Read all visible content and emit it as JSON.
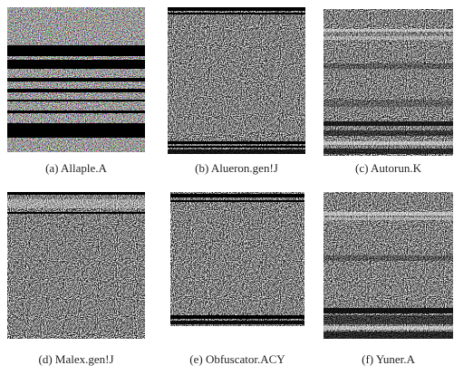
{
  "figure": {
    "panels": [
      {
        "caption": "(a) Allaple.A"
      },
      {
        "caption": "(b) Alueron.gen!J"
      },
      {
        "caption": "(c) Autorun.K"
      },
      {
        "caption": "(d) Malex.gen!J"
      },
      {
        "caption": "(e) Obfuscator.ACY"
      },
      {
        "caption": "(f) Yuner.A"
      }
    ]
  }
}
